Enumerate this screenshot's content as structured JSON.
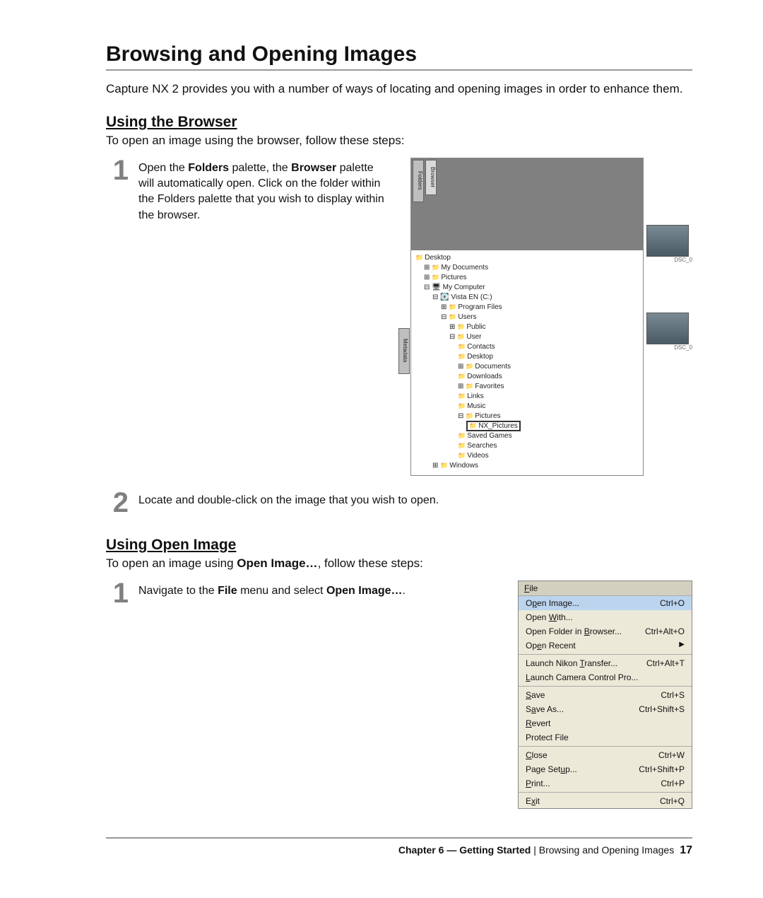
{
  "title": "Browsing and Opening Images",
  "intro": "Capture NX 2 provides you with a number of ways of locating and opening images in order to enhance them.",
  "section1": {
    "heading": "Using the Browser",
    "intro": "To open an image using the browser, follow these steps:",
    "step1_num": "1",
    "step1_a": "Open the ",
    "step1_b": "Folders",
    "step1_c": " palette, the ",
    "step1_d": "Browser",
    "step1_e": " palette will automatically open. Click on the folder within the Folders palette that you wish to display within the browser.",
    "step2_num": "2",
    "step2_text": "Locate and double-click on the image that you wish to open."
  },
  "folders": {
    "tab1": "Folders",
    "tab2": "Browser",
    "side": "Metadata",
    "tree": {
      "root": "Desktop",
      "n1": "My Documents",
      "n2": "Pictures",
      "n3": "My Computer",
      "n4": "Vista EN (C:)",
      "n5": "Program Files",
      "n6": "Users",
      "n7": "Public",
      "n8": "User",
      "n9": "Contacts",
      "n10": "Desktop",
      "n11": "Documents",
      "n12": "Downloads",
      "n13": "Favorites",
      "n14": "Links",
      "n15": "Music",
      "n16": "Pictures",
      "n17": "NX_Pictures",
      "n18": "Saved Games",
      "n19": "Searches",
      "n20": "Videos",
      "n21": "Windows"
    },
    "thumb1_label": "DSC_0",
    "thumb2_label": "DSC_0"
  },
  "section2": {
    "heading": "Using Open Image",
    "intro_a": "To open an image using ",
    "intro_b": "Open Image…",
    "intro_c": ", follow these steps:",
    "step1_num": "1",
    "step1_a": "Navigate to the ",
    "step1_b": "File",
    "step1_c": " menu and select ",
    "step1_d": "Open Image…",
    "step1_e": "."
  },
  "menu": {
    "title": "File",
    "items": [
      {
        "label_pre": "O",
        "label_u": "p",
        "label_post": "en Image...",
        "short": "Ctrl+O",
        "hl": true
      },
      {
        "label_pre": "Open ",
        "label_u": "W",
        "label_post": "ith...",
        "short": ""
      },
      {
        "label_pre": "Open Folder in ",
        "label_u": "B",
        "label_post": "rowser...",
        "short": "Ctrl+Alt+O"
      },
      {
        "label_pre": "Op",
        "label_u": "e",
        "label_post": "n Recent",
        "short": "",
        "arrow": true
      }
    ],
    "items2": [
      {
        "label_pre": "Launch Nikon ",
        "label_u": "T",
        "label_post": "ransfer...",
        "short": "Ctrl+Alt+T"
      },
      {
        "label_pre": "",
        "label_u": "L",
        "label_post": "aunch Camera Control Pro...",
        "short": ""
      }
    ],
    "items3": [
      {
        "label_pre": "",
        "label_u": "S",
        "label_post": "ave",
        "short": "Ctrl+S"
      },
      {
        "label_pre": "S",
        "label_u": "a",
        "label_post": "ve As...",
        "short": "Ctrl+Shift+S"
      },
      {
        "label_pre": "",
        "label_u": "R",
        "label_post": "evert",
        "short": ""
      },
      {
        "label_pre": "Protect File",
        "label_u": "",
        "label_post": "",
        "short": ""
      }
    ],
    "items4": [
      {
        "label_pre": "",
        "label_u": "C",
        "label_post": "lose",
        "short": "Ctrl+W"
      },
      {
        "label_pre": "Page Set",
        "label_u": "u",
        "label_post": "p...",
        "short": "Ctrl+Shift+P"
      },
      {
        "label_pre": "",
        "label_u": "P",
        "label_post": "rint...",
        "short": "Ctrl+P"
      }
    ],
    "items5": [
      {
        "label_pre": "E",
        "label_u": "x",
        "label_post": "it",
        "short": "Ctrl+Q"
      }
    ]
  },
  "footer": {
    "chapter": "Chapter 6 — Getting Started",
    "sep": " | ",
    "section": "Browsing and Opening Images",
    "page": "17"
  }
}
